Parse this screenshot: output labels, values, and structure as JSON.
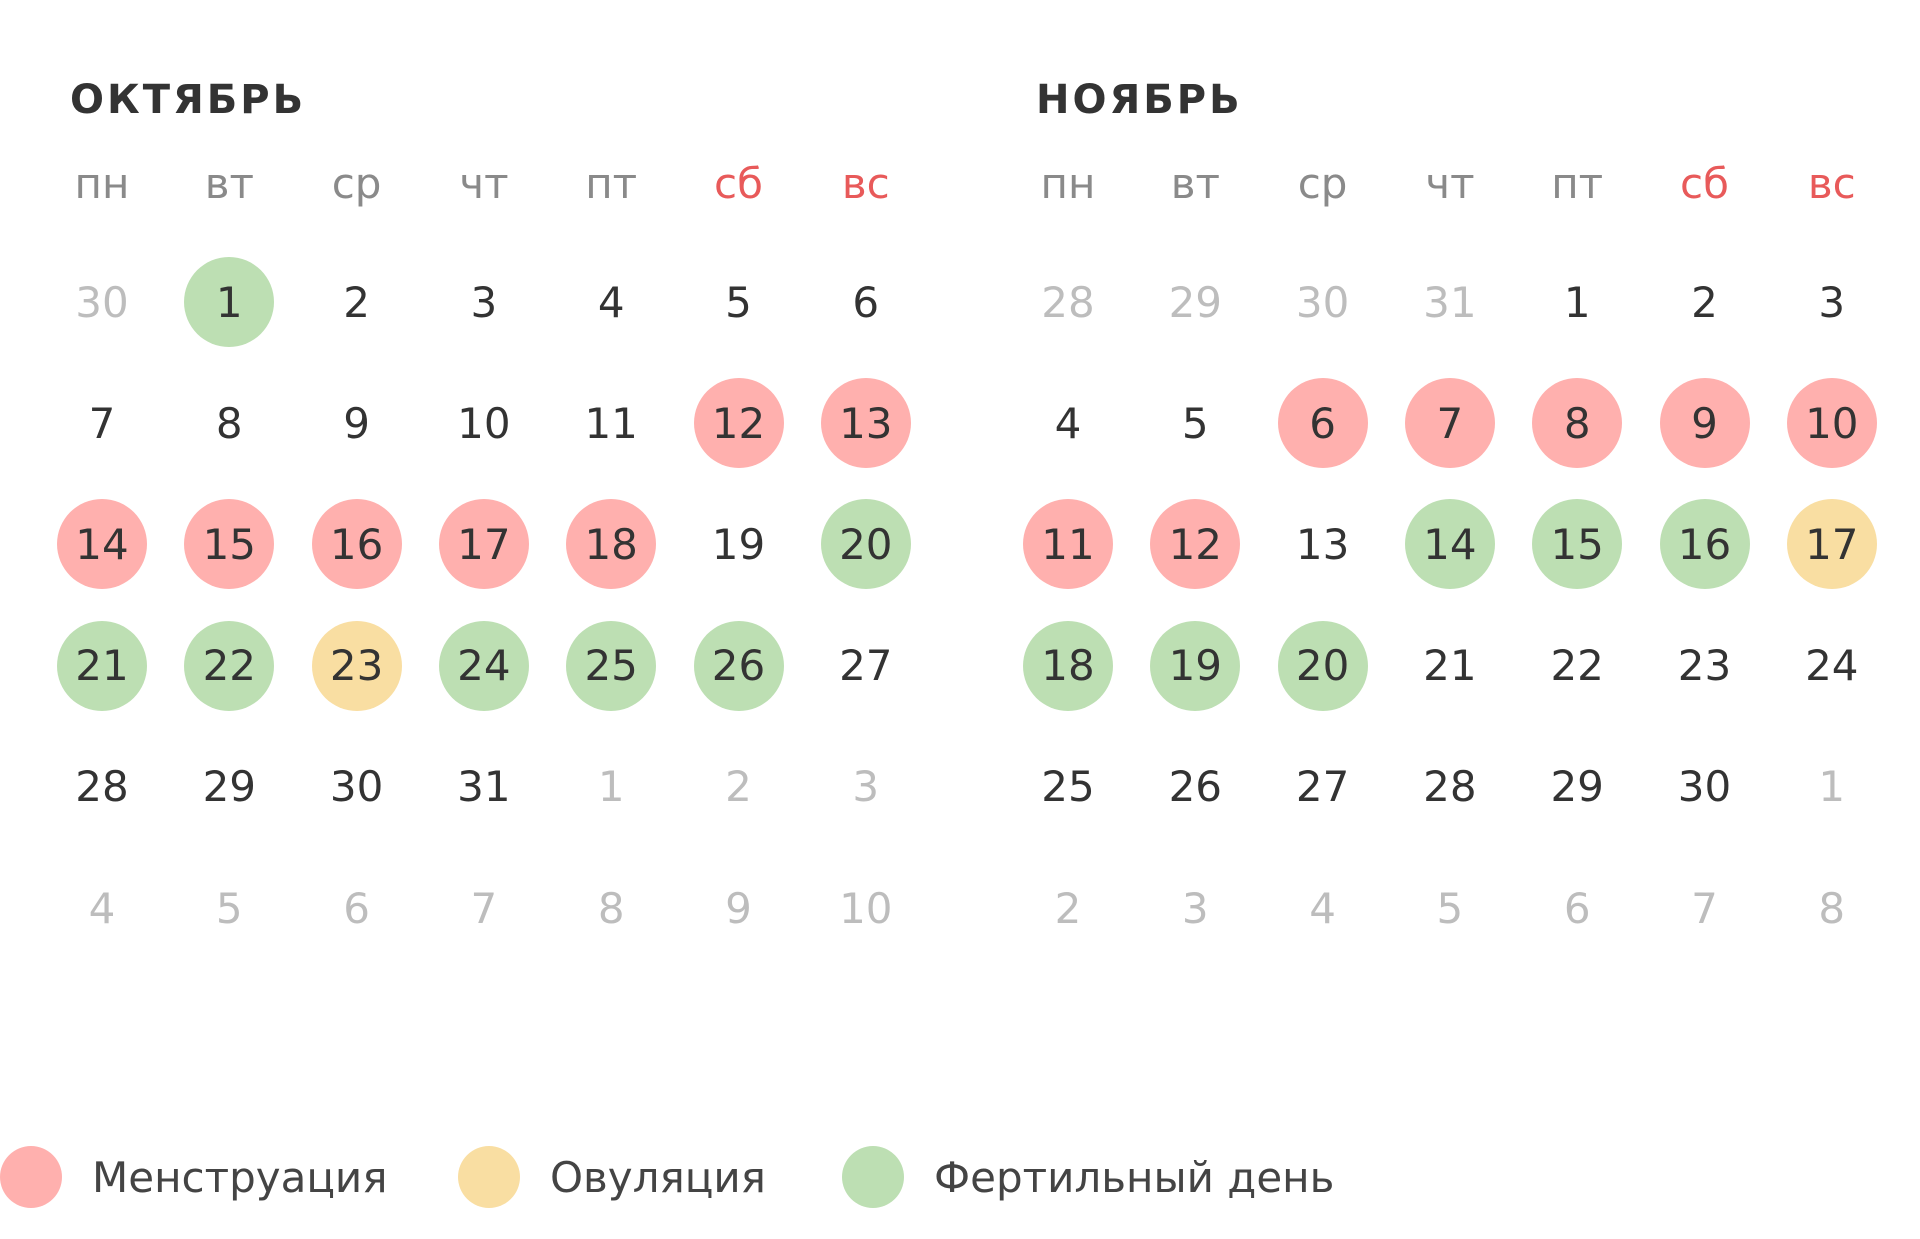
{
  "colors": {
    "menstruation": "#ffb0ae",
    "ovulation": "#f9dea2",
    "fertile": "#bddfb3",
    "weekend": "#e85a5a",
    "text": "#333333",
    "muted": "#bdbdbd",
    "weekday": "#8a8a8a"
  },
  "weekdays": [
    {
      "label": "пн",
      "weekend": false
    },
    {
      "label": "вт",
      "weekend": false
    },
    {
      "label": "ср",
      "weekend": false
    },
    {
      "label": "чт",
      "weekend": false
    },
    {
      "label": "пт",
      "weekend": false
    },
    {
      "label": "сб",
      "weekend": true
    },
    {
      "label": "вс",
      "weekend": true
    }
  ],
  "months": [
    {
      "title": "ОКТЯБРЬ",
      "weeks": [
        [
          {
            "d": "30",
            "out": true
          },
          {
            "d": "1",
            "type": "fertile"
          },
          {
            "d": "2"
          },
          {
            "d": "3"
          },
          {
            "d": "4"
          },
          {
            "d": "5"
          },
          {
            "d": "6"
          }
        ],
        [
          {
            "d": "7"
          },
          {
            "d": "8"
          },
          {
            "d": "9"
          },
          {
            "d": "10"
          },
          {
            "d": "11"
          },
          {
            "d": "12",
            "type": "menstruation"
          },
          {
            "d": "13",
            "type": "menstruation"
          }
        ],
        [
          {
            "d": "14",
            "type": "menstruation"
          },
          {
            "d": "15",
            "type": "menstruation"
          },
          {
            "d": "16",
            "type": "menstruation"
          },
          {
            "d": "17",
            "type": "menstruation"
          },
          {
            "d": "18",
            "type": "menstruation"
          },
          {
            "d": "19"
          },
          {
            "d": "20",
            "type": "fertile"
          }
        ],
        [
          {
            "d": "21",
            "type": "fertile"
          },
          {
            "d": "22",
            "type": "fertile"
          },
          {
            "d": "23",
            "type": "ovulation"
          },
          {
            "d": "24",
            "type": "fertile"
          },
          {
            "d": "25",
            "type": "fertile"
          },
          {
            "d": "26",
            "type": "fertile"
          },
          {
            "d": "27"
          }
        ],
        [
          {
            "d": "28"
          },
          {
            "d": "29"
          },
          {
            "d": "30"
          },
          {
            "d": "31"
          },
          {
            "d": "1",
            "out": true
          },
          {
            "d": "2",
            "out": true
          },
          {
            "d": "3",
            "out": true
          }
        ],
        [
          {
            "d": "4",
            "out": true
          },
          {
            "d": "5",
            "out": true
          },
          {
            "d": "6",
            "out": true
          },
          {
            "d": "7",
            "out": true
          },
          {
            "d": "8",
            "out": true
          },
          {
            "d": "9",
            "out": true
          },
          {
            "d": "10",
            "out": true
          }
        ]
      ]
    },
    {
      "title": "НОЯБРЬ",
      "weeks": [
        [
          {
            "d": "28",
            "out": true
          },
          {
            "d": "29",
            "out": true
          },
          {
            "d": "30",
            "out": true
          },
          {
            "d": "31",
            "out": true
          },
          {
            "d": "1"
          },
          {
            "d": "2"
          },
          {
            "d": "3"
          }
        ],
        [
          {
            "d": "4"
          },
          {
            "d": "5"
          },
          {
            "d": "6",
            "type": "menstruation"
          },
          {
            "d": "7",
            "type": "menstruation"
          },
          {
            "d": "8",
            "type": "menstruation"
          },
          {
            "d": "9",
            "type": "menstruation"
          },
          {
            "d": "10",
            "type": "menstruation"
          }
        ],
        [
          {
            "d": "11",
            "type": "menstruation"
          },
          {
            "d": "12",
            "type": "menstruation"
          },
          {
            "d": "13"
          },
          {
            "d": "14",
            "type": "fertile"
          },
          {
            "d": "15",
            "type": "fertile"
          },
          {
            "d": "16",
            "type": "fertile"
          },
          {
            "d": "17",
            "type": "ovulation"
          }
        ],
        [
          {
            "d": "18",
            "type": "fertile"
          },
          {
            "d": "19",
            "type": "fertile"
          },
          {
            "d": "20",
            "type": "fertile"
          },
          {
            "d": "21"
          },
          {
            "d": "22"
          },
          {
            "d": "23"
          },
          {
            "d": "24"
          }
        ],
        [
          {
            "d": "25"
          },
          {
            "d": "26"
          },
          {
            "d": "27"
          },
          {
            "d": "28"
          },
          {
            "d": "29"
          },
          {
            "d": "30"
          },
          {
            "d": "1",
            "out": true
          }
        ],
        [
          {
            "d": "2",
            "out": true
          },
          {
            "d": "3",
            "out": true
          },
          {
            "d": "4",
            "out": true
          },
          {
            "d": "5",
            "out": true
          },
          {
            "d": "6",
            "out": true
          },
          {
            "d": "7",
            "out": true
          },
          {
            "d": "8",
            "out": true
          }
        ]
      ]
    }
  ],
  "legend": [
    {
      "label": "Менструация",
      "type": "menstruation"
    },
    {
      "label": "Овуляция",
      "type": "ovulation"
    },
    {
      "label": "Фертильный день",
      "type": "fertile"
    }
  ]
}
